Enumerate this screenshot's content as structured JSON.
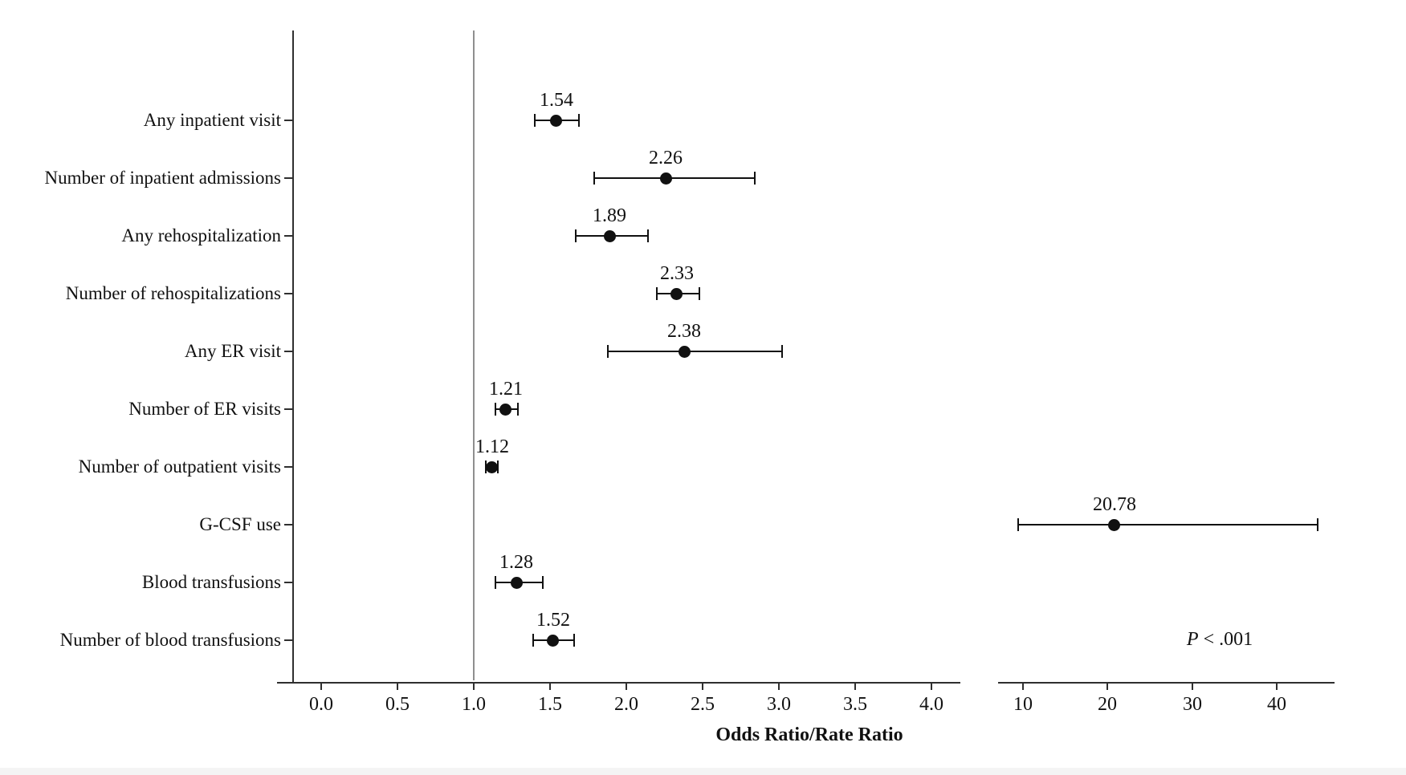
{
  "chart_data": {
    "type": "forest",
    "title": "",
    "xlabel": "Odds Ratio/Rate Ratio",
    "p_annotation": {
      "prefix": "P",
      "rest": " < .001"
    },
    "reference_line_value": 1.0,
    "grid": "off",
    "legend": "none",
    "colors": {
      "marker": "#111111",
      "axis": "#2f2f2f",
      "reference_line": "#8f8f8f",
      "text": "#111111",
      "background": "#ffffff"
    },
    "panels": [
      {
        "id": "main",
        "xlim": [
          -0.2,
          4.2
        ],
        "ticks": [
          {
            "v": 0.0,
            "label": "0.0"
          },
          {
            "v": 0.5,
            "label": "0.5"
          },
          {
            "v": 1.0,
            "label": "1.0"
          },
          {
            "v": 1.5,
            "label": "1.5"
          },
          {
            "v": 2.0,
            "label": "2.0"
          },
          {
            "v": 2.5,
            "label": "2.5"
          },
          {
            "v": 3.0,
            "label": "3.0"
          },
          {
            "v": 3.5,
            "label": "3.5"
          },
          {
            "v": 4.0,
            "label": "4.0"
          }
        ]
      },
      {
        "id": "break",
        "xlim": [
          7,
          46.7
        ],
        "ticks": [
          {
            "v": 10,
            "label": "10"
          },
          {
            "v": 20,
            "label": "20"
          },
          {
            "v": 30,
            "label": "30"
          },
          {
            "v": 40,
            "label": "40"
          }
        ]
      }
    ],
    "rows": [
      {
        "label": "Any inpatient visit",
        "value": 1.54,
        "display": "1.54",
        "ci_low": 1.4,
        "ci_high": 1.69,
        "panel": "main"
      },
      {
        "label": "Number of inpatient admissions",
        "value": 2.26,
        "display": "2.26",
        "ci_low": 1.79,
        "ci_high": 2.84,
        "panel": "main"
      },
      {
        "label": "Any rehospitalization",
        "value": 1.89,
        "display": "1.89",
        "ci_low": 1.67,
        "ci_high": 2.14,
        "panel": "main"
      },
      {
        "label": "Number of rehospitalizations",
        "value": 2.33,
        "display": "2.33",
        "ci_low": 2.2,
        "ci_high": 2.48,
        "panel": "main"
      },
      {
        "label": "Any ER visit",
        "value": 2.38,
        "display": "2.38",
        "ci_low": 1.88,
        "ci_high": 3.02,
        "panel": "main"
      },
      {
        "label": "Number of ER visits",
        "value": 1.21,
        "display": "1.21",
        "ci_low": 1.14,
        "ci_high": 1.29,
        "panel": "main"
      },
      {
        "label": "Number of outpatient visits",
        "value": 1.12,
        "display": "1.12",
        "ci_low": 1.08,
        "ci_high": 1.16,
        "panel": "main"
      },
      {
        "label": "G-CSF use",
        "value": 20.78,
        "display": "20.78",
        "ci_low": 9.4,
        "ci_high": 44.8,
        "panel": "break"
      },
      {
        "label": "Blood transfusions",
        "value": 1.28,
        "display": "1.28",
        "ci_low": 1.14,
        "ci_high": 1.45,
        "panel": "main"
      },
      {
        "label": "Number of blood transfusions",
        "value": 1.52,
        "display": "1.52",
        "ci_low": 1.39,
        "ci_high": 1.66,
        "panel": "main"
      }
    ]
  }
}
